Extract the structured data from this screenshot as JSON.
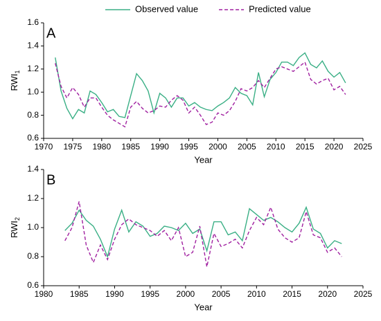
{
  "chart_data": [
    {
      "type": "line",
      "label": "A",
      "x_label": "Year",
      "y_label": "RWI",
      "y_label_sub": "1",
      "x": [
        1972,
        1973,
        1974,
        1975,
        1976,
        1977,
        1978,
        1979,
        1980,
        1981,
        1982,
        1983,
        1984,
        1985,
        1986,
        1987,
        1988,
        1989,
        1990,
        1991,
        1992,
        1993,
        1994,
        1995,
        1996,
        1997,
        1998,
        1999,
        2000,
        2001,
        2002,
        2003,
        2004,
        2005,
        2006,
        2007,
        2008,
        2009,
        2010,
        2011,
        2012,
        2013,
        2014,
        2015,
        2016,
        2017,
        2018,
        2019,
        2020,
        2021,
        2022
      ],
      "series": [
        {
          "name": "Observed value",
          "color": "#3aaf85",
          "dash": false,
          "values": [
            1.3,
            1.01,
            0.86,
            0.77,
            0.85,
            0.82,
            1.01,
            0.98,
            0.91,
            0.83,
            0.85,
            0.79,
            0.78,
            0.97,
            1.16,
            1.1,
            1.01,
            0.82,
            0.99,
            0.95,
            0.87,
            0.95,
            0.95,
            0.88,
            0.91,
            0.87,
            0.85,
            0.84,
            0.88,
            0.91,
            0.95,
            1.04,
            0.99,
            0.97,
            0.89,
            1.17,
            0.96,
            1.11,
            1.17,
            1.26,
            1.26,
            1.23,
            1.3,
            1.34,
            1.24,
            1.21,
            1.27,
            1.18,
            1.13,
            1.17,
            1.08
          ]
        },
        {
          "name": "Predicted value",
          "color": "#a020a0",
          "dash": true,
          "values": [
            1.25,
            1.05,
            0.95,
            1.04,
            0.98,
            0.87,
            0.95,
            0.95,
            0.87,
            0.8,
            0.76,
            0.73,
            0.7,
            0.87,
            0.92,
            0.86,
            0.82,
            0.84,
            0.88,
            0.87,
            0.93,
            0.97,
            0.93,
            0.82,
            0.87,
            0.8,
            0.72,
            0.74,
            0.82,
            0.8,
            0.84,
            0.92,
            1.03,
            1.01,
            1.04,
            1.1,
            1.04,
            1.12,
            1.2,
            1.22,
            1.2,
            1.18,
            1.22,
            1.26,
            1.11,
            1.07,
            1.1,
            1.12,
            1.02,
            1.05,
            0.98
          ]
        }
      ],
      "xlim": [
        1970,
        2025
      ],
      "xticks": [
        1970,
        1975,
        1980,
        1985,
        1990,
        1995,
        2000,
        2005,
        2010,
        2015,
        2020,
        2025
      ],
      "ylim": [
        0.6,
        1.6
      ],
      "yticks": [
        {
          "value": 0.6,
          "label": "0.6"
        },
        {
          "value": 0.8,
          "label": "0.8"
        },
        {
          "value": 1,
          "label": "1.0"
        },
        {
          "value": 1.2,
          "label": "1.2"
        },
        {
          "value": 1.4,
          "label": "1.4"
        },
        {
          "value": 1.6,
          "label": "1.6"
        }
      ],
      "legend": "top"
    },
    {
      "type": "line",
      "label": "B",
      "x_label": "Year",
      "y_label": "RWI",
      "y_label_sub": "2",
      "x": [
        1983,
        1984,
        1985,
        1986,
        1987,
        1988,
        1989,
        1990,
        1991,
        1992,
        1993,
        1994,
        1995,
        1996,
        1997,
        1998,
        1999,
        2000,
        2001,
        2002,
        2003,
        2004,
        2005,
        2006,
        2007,
        2008,
        2009,
        2010,
        2011,
        2012,
        2013,
        2014,
        2015,
        2016,
        2017,
        2018,
        2019,
        2020,
        2021,
        2022
      ],
      "series": [
        {
          "color": "#3aaf85",
          "dash": false,
          "values": [
            0.98,
            1.03,
            1.12,
            1.05,
            1.01,
            0.92,
            0.8,
            0.99,
            1.12,
            0.97,
            1.04,
            1.01,
            0.94,
            0.96,
            1.01,
            1.0,
            0.98,
            1.03,
            0.96,
            0.99,
            0.84,
            1.04,
            1.04,
            0.95,
            0.97,
            0.91,
            1.13,
            1.09,
            1.05,
            1.07,
            1.04,
            1.0,
            0.97,
            1.03,
            1.14,
            0.99,
            0.96,
            0.86,
            0.91,
            0.89
          ]
        },
        {
          "color": "#a020a0",
          "dash": true,
          "values": [
            0.91,
            1.0,
            1.18,
            0.88,
            0.76,
            0.88,
            0.78,
            0.92,
            1.02,
            1.06,
            1.02,
            1.0,
            0.98,
            0.94,
            0.98,
            0.91,
            1.0,
            0.8,
            0.83,
            1.01,
            0.73,
            0.96,
            0.87,
            0.89,
            0.92,
            0.86,
            0.98,
            1.07,
            1.02,
            1.14,
            0.99,
            0.93,
            0.9,
            0.93,
            1.11,
            0.95,
            0.93,
            0.83,
            0.86,
            0.8
          ]
        }
      ],
      "xlim": [
        1980,
        2025
      ],
      "xticks": [
        1980,
        1985,
        1990,
        1995,
        2000,
        2005,
        2010,
        2015,
        2020,
        2025
      ],
      "ylim": [
        0.6,
        1.4
      ],
      "yticks": [
        {
          "value": 0.6,
          "label": "0.6"
        },
        {
          "value": 0.8,
          "label": "0.8"
        },
        {
          "value": 1,
          "label": "1.0"
        },
        {
          "value": 1.2,
          "label": "1.2"
        },
        {
          "value": 1.4,
          "label": "1.4"
        }
      ]
    }
  ]
}
